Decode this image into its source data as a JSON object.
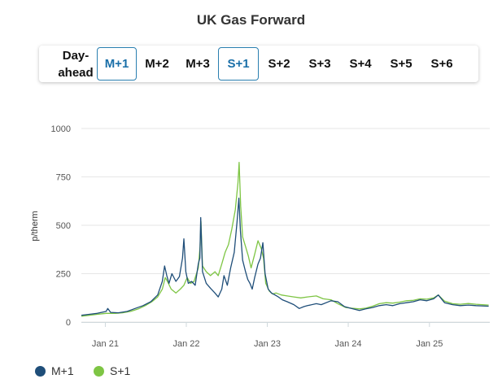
{
  "title": "UK Gas Forward",
  "tabs": [
    {
      "line1": "Day-",
      "line2": "ahead",
      "active": false
    },
    {
      "label": "M+1",
      "active": true
    },
    {
      "label": "M+2",
      "active": false
    },
    {
      "label": "M+3",
      "active": false
    },
    {
      "label": "S+1",
      "active": true
    },
    {
      "label": "S+2",
      "active": false
    },
    {
      "label": "S+3",
      "active": false
    },
    {
      "label": "S+4",
      "active": false
    },
    {
      "label": "S+5",
      "active": false
    },
    {
      "label": "S+6",
      "active": false
    }
  ],
  "legend": [
    {
      "name": "M+1",
      "color": "#1f4e79"
    },
    {
      "name": "S+1",
      "color": "#7ec544"
    }
  ],
  "chart_data": {
    "type": "line",
    "title": "UK Gas Forward",
    "xlabel": "",
    "ylabel": "p/therm",
    "ylim": [
      0,
      1000
    ],
    "yticks": [
      0,
      250,
      500,
      750,
      1000
    ],
    "xlim": [
      "2020-09-15",
      "2025-09-30"
    ],
    "xticks": [
      {
        "date": "2021-01-01",
        "label": "Jan 21"
      },
      {
        "date": "2022-01-01",
        "label": "Jan 22"
      },
      {
        "date": "2023-01-01",
        "label": "Jan 23"
      },
      {
        "date": "2024-01-01",
        "label": "Jan 24"
      },
      {
        "date": "2025-01-01",
        "label": "Jan 25"
      }
    ],
    "grid": "horizontal",
    "legend_position": "bottom-left",
    "series": [
      {
        "name": "M+1",
        "color": "#1f4e79",
        "points": [
          [
            "2020-09-15",
            35
          ],
          [
            "2020-10-20",
            40
          ],
          [
            "2020-11-25",
            45
          ],
          [
            "2021-01-05",
            55
          ],
          [
            "2021-01-12",
            70
          ],
          [
            "2021-01-25",
            50
          ],
          [
            "2021-03-01",
            48
          ],
          [
            "2021-04-10",
            55
          ],
          [
            "2021-05-15",
            70
          ],
          [
            "2021-06-20",
            85
          ],
          [
            "2021-07-25",
            105
          ],
          [
            "2021-08-25",
            140
          ],
          [
            "2021-09-15",
            210
          ],
          [
            "2021-09-25",
            290
          ],
          [
            "2021-10-05",
            240
          ],
          [
            "2021-10-15",
            200
          ],
          [
            "2021-10-28",
            250
          ],
          [
            "2021-11-15",
            210
          ],
          [
            "2021-12-01",
            235
          ],
          [
            "2021-12-15",
            330
          ],
          [
            "2021-12-21",
            430
          ],
          [
            "2021-12-30",
            260
          ],
          [
            "2022-01-10",
            200
          ],
          [
            "2022-01-25",
            210
          ],
          [
            "2022-02-10",
            190
          ],
          [
            "2022-02-24",
            300
          ],
          [
            "2022-03-03",
            330
          ],
          [
            "2022-03-07",
            540
          ],
          [
            "2022-03-15",
            260
          ],
          [
            "2022-04-01",
            200
          ],
          [
            "2022-04-20",
            175
          ],
          [
            "2022-05-10",
            150
          ],
          [
            "2022-05-25",
            130
          ],
          [
            "2022-06-10",
            170
          ],
          [
            "2022-06-20",
            240
          ],
          [
            "2022-07-05",
            190
          ],
          [
            "2022-07-20",
            280
          ],
          [
            "2022-08-05",
            360
          ],
          [
            "2022-08-18",
            520
          ],
          [
            "2022-08-26",
            640
          ],
          [
            "2022-09-02",
            470
          ],
          [
            "2022-09-12",
            320
          ],
          [
            "2022-09-25",
            260
          ],
          [
            "2022-10-05",
            220
          ],
          [
            "2022-10-15",
            200
          ],
          [
            "2022-10-25",
            170
          ],
          [
            "2022-11-05",
            230
          ],
          [
            "2022-11-20",
            300
          ],
          [
            "2022-12-01",
            330
          ],
          [
            "2022-12-12",
            410
          ],
          [
            "2022-12-22",
            250
          ],
          [
            "2023-01-05",
            170
          ],
          [
            "2023-01-20",
            150
          ],
          [
            "2023-02-05",
            140
          ],
          [
            "2023-02-20",
            130
          ],
          [
            "2023-03-10",
            115
          ],
          [
            "2023-04-01",
            105
          ],
          [
            "2023-05-01",
            90
          ],
          [
            "2023-05-25",
            70
          ],
          [
            "2023-06-15",
            80
          ],
          [
            "2023-07-01",
            85
          ],
          [
            "2023-08-10",
            95
          ],
          [
            "2023-09-01",
            90
          ],
          [
            "2023-10-15",
            110
          ],
          [
            "2023-11-15",
            105
          ],
          [
            "2023-12-15",
            80
          ],
          [
            "2024-01-15",
            70
          ],
          [
            "2024-02-20",
            60
          ],
          [
            "2024-03-20",
            68
          ],
          [
            "2024-04-20",
            75
          ],
          [
            "2024-05-20",
            85
          ],
          [
            "2024-06-20",
            90
          ],
          [
            "2024-07-20",
            85
          ],
          [
            "2024-08-20",
            95
          ],
          [
            "2024-09-20",
            100
          ],
          [
            "2024-10-20",
            105
          ],
          [
            "2024-11-20",
            115
          ],
          [
            "2024-12-20",
            110
          ],
          [
            "2025-01-20",
            120
          ],
          [
            "2025-02-10",
            140
          ],
          [
            "2025-03-10",
            100
          ],
          [
            "2025-04-15",
            90
          ],
          [
            "2025-05-20",
            85
          ],
          [
            "2025-06-25",
            88
          ],
          [
            "2025-07-30",
            85
          ],
          [
            "2025-09-25",
            82
          ]
        ]
      },
      {
        "name": "S+1",
        "color": "#7ec544",
        "points": [
          [
            "2020-09-15",
            30
          ],
          [
            "2020-10-20",
            35
          ],
          [
            "2020-11-25",
            40
          ],
          [
            "2021-01-05",
            45
          ],
          [
            "2021-02-15",
            45
          ],
          [
            "2021-03-20",
            48
          ],
          [
            "2021-04-25",
            55
          ],
          [
            "2021-05-30",
            68
          ],
          [
            "2021-06-30",
            85
          ],
          [
            "2021-07-30",
            105
          ],
          [
            "2021-08-25",
            130
          ],
          [
            "2021-09-15",
            170
          ],
          [
            "2021-09-28",
            230
          ],
          [
            "2021-10-08",
            210
          ],
          [
            "2021-10-25",
            170
          ],
          [
            "2021-11-15",
            150
          ],
          [
            "2021-12-05",
            170
          ],
          [
            "2021-12-21",
            190
          ],
          [
            "2022-01-05",
            230
          ],
          [
            "2022-01-20",
            200
          ],
          [
            "2022-02-05",
            210
          ],
          [
            "2022-02-24",
            280
          ],
          [
            "2022-03-04",
            390
          ],
          [
            "2022-03-08",
            520
          ],
          [
            "2022-03-15",
            290
          ],
          [
            "2022-04-01",
            260
          ],
          [
            "2022-04-20",
            240
          ],
          [
            "2022-05-10",
            260
          ],
          [
            "2022-05-25",
            240
          ],
          [
            "2022-06-10",
            300
          ],
          [
            "2022-06-25",
            360
          ],
          [
            "2022-07-10",
            400
          ],
          [
            "2022-07-25",
            480
          ],
          [
            "2022-08-10",
            580
          ],
          [
            "2022-08-22",
            720
          ],
          [
            "2022-08-27",
            825
          ],
          [
            "2022-09-03",
            600
          ],
          [
            "2022-09-12",
            440
          ],
          [
            "2022-09-25",
            390
          ],
          [
            "2022-10-08",
            340
          ],
          [
            "2022-10-20",
            280
          ],
          [
            "2022-11-05",
            350
          ],
          [
            "2022-11-20",
            420
          ],
          [
            "2022-12-05",
            380
          ],
          [
            "2022-12-15",
            330
          ],
          [
            "2022-12-25",
            200
          ],
          [
            "2023-01-10",
            160
          ],
          [
            "2023-01-25",
            145
          ],
          [
            "2023-02-10",
            150
          ],
          [
            "2023-03-05",
            140
          ],
          [
            "2023-04-01",
            135
          ],
          [
            "2023-05-01",
            130
          ],
          [
            "2023-06-01",
            125
          ],
          [
            "2023-07-01",
            130
          ],
          [
            "2023-08-10",
            135
          ],
          [
            "2023-09-10",
            120
          ],
          [
            "2023-10-15",
            115
          ],
          [
            "2023-11-15",
            95
          ],
          [
            "2023-12-20",
            75
          ],
          [
            "2024-01-15",
            72
          ],
          [
            "2024-02-20",
            68
          ],
          [
            "2024-03-20",
            72
          ],
          [
            "2024-04-20",
            82
          ],
          [
            "2024-05-20",
            95
          ],
          [
            "2024-06-20",
            100
          ],
          [
            "2024-07-20",
            98
          ],
          [
            "2024-08-20",
            103
          ],
          [
            "2024-09-20",
            110
          ],
          [
            "2024-10-20",
            112
          ],
          [
            "2024-11-20",
            120
          ],
          [
            "2024-12-20",
            118
          ],
          [
            "2025-01-20",
            125
          ],
          [
            "2025-02-10",
            140
          ],
          [
            "2025-03-10",
            108
          ],
          [
            "2025-04-15",
            95
          ],
          [
            "2025-05-20",
            92
          ],
          [
            "2025-06-25",
            96
          ],
          [
            "2025-07-30",
            92
          ],
          [
            "2025-09-25",
            88
          ]
        ]
      }
    ]
  }
}
